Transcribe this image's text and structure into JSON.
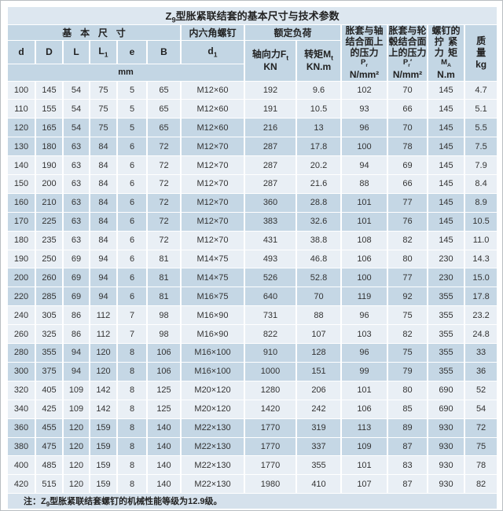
{
  "title": {
    "prefix": "Z",
    "sub": "9",
    "rest": "型胀紧联结套的基本尺寸与技术参数"
  },
  "colors": {
    "stripe_light": "#e9eff5",
    "stripe_dark": "#c5d7e5",
    "header_band": "#c3d6e4",
    "title_band": "#dde7f0",
    "note_band": "#d5e1ec",
    "grid_line": "#ffffff",
    "text": "#333333"
  },
  "header": {
    "basic_dims": "基本尺寸",
    "hex_screw": "内六角螺钉",
    "rated_load": "额定负荷",
    "mm": "mm",
    "col_d": "d",
    "col_D": "D",
    "col_L": "L",
    "col_L1_base": "L",
    "col_L1_sub": "1",
    "col_e": "e",
    "col_B": "B",
    "col_d1_base": "d",
    "col_d1_sub": "1",
    "axial_base": "轴向力F",
    "axial_sub": "t",
    "axial_unit": "KN",
    "torque_base": "转矩M",
    "torque_sub": "t",
    "torque_unit": "KN.m",
    "pr_shaft": {
      "l1": "胀套与轴",
      "l2": "结合面上",
      "l3": "的压力",
      "sym_base": "P",
      "sym_sub": "r",
      "unit": "N/mm²"
    },
    "pr_hub": {
      "l1": "胀套与轮",
      "l2": "毂结合面",
      "l3": "上的压力",
      "sym_base": "P",
      "sym_sub": "r",
      "sym_prime": "′",
      "unit": "N/mm²"
    },
    "ma": {
      "l1": "螺钉的",
      "l2": "拧紧",
      "l3": "力矩",
      "sym_base": "M",
      "sym_sub": "A",
      "unit": "N.m"
    },
    "mass": {
      "l1": "质量",
      "l2": "kg"
    }
  },
  "rows": [
    [
      "100",
      "145",
      "54",
      "75",
      "5",
      "65",
      "M12×60",
      "192",
      "9.6",
      "102",
      "70",
      "145",
      "4.7"
    ],
    [
      "110",
      "155",
      "54",
      "75",
      "5",
      "65",
      "M12×60",
      "191",
      "10.5",
      "93",
      "66",
      "145",
      "5.1"
    ],
    [
      "120",
      "165",
      "54",
      "75",
      "5",
      "65",
      "M12×60",
      "216",
      "13",
      "96",
      "70",
      "145",
      "5.5"
    ],
    [
      "130",
      "180",
      "63",
      "84",
      "6",
      "72",
      "M12×70",
      "287",
      "17.8",
      "100",
      "78",
      "145",
      "7.5"
    ],
    [
      "140",
      "190",
      "63",
      "84",
      "6",
      "72",
      "M12×70",
      "287",
      "20.2",
      "94",
      "69",
      "145",
      "7.9"
    ],
    [
      "150",
      "200",
      "63",
      "84",
      "6",
      "72",
      "M12×70",
      "287",
      "21.6",
      "88",
      "66",
      "145",
      "8.4"
    ],
    [
      "160",
      "210",
      "63",
      "84",
      "6",
      "72",
      "M12×70",
      "360",
      "28.8",
      "101",
      "77",
      "145",
      "8.9"
    ],
    [
      "170",
      "225",
      "63",
      "84",
      "6",
      "72",
      "M12×70",
      "383",
      "32.6",
      "101",
      "76",
      "145",
      "10.5"
    ],
    [
      "180",
      "235",
      "63",
      "84",
      "6",
      "72",
      "M12×70",
      "431",
      "38.8",
      "108",
      "82",
      "145",
      "11.0"
    ],
    [
      "190",
      "250",
      "69",
      "94",
      "6",
      "81",
      "M14×75",
      "493",
      "46.8",
      "106",
      "80",
      "230",
      "14.3"
    ],
    [
      "200",
      "260",
      "69",
      "94",
      "6",
      "81",
      "M14×75",
      "526",
      "52.8",
      "100",
      "77",
      "230",
      "15.0"
    ],
    [
      "220",
      "285",
      "69",
      "94",
      "6",
      "81",
      "M16×75",
      "640",
      "70",
      "119",
      "92",
      "355",
      "17.8"
    ],
    [
      "240",
      "305",
      "86",
      "112",
      "7",
      "98",
      "M16×90",
      "731",
      "88",
      "96",
      "75",
      "355",
      "23.2"
    ],
    [
      "260",
      "325",
      "86",
      "112",
      "7",
      "98",
      "M16×90",
      "822",
      "107",
      "103",
      "82",
      "355",
      "24.8"
    ],
    [
      "280",
      "355",
      "94",
      "120",
      "8",
      "106",
      "M16×100",
      "910",
      "128",
      "96",
      "75",
      "355",
      "33"
    ],
    [
      "300",
      "375",
      "94",
      "120",
      "8",
      "106",
      "M16×100",
      "1000",
      "151",
      "99",
      "79",
      "355",
      "36"
    ],
    [
      "320",
      "405",
      "109",
      "142",
      "8",
      "125",
      "M20×120",
      "1280",
      "206",
      "101",
      "80",
      "690",
      "52"
    ],
    [
      "340",
      "425",
      "109",
      "142",
      "8",
      "125",
      "M20×120",
      "1420",
      "242",
      "106",
      "85",
      "690",
      "54"
    ],
    [
      "360",
      "455",
      "120",
      "159",
      "8",
      "140",
      "M22×130",
      "1770",
      "319",
      "113",
      "89",
      "930",
      "72"
    ],
    [
      "380",
      "475",
      "120",
      "159",
      "8",
      "140",
      "M22×130",
      "1770",
      "337",
      "109",
      "87",
      "930",
      "75"
    ],
    [
      "400",
      "485",
      "120",
      "159",
      "8",
      "140",
      "M22×130",
      "1770",
      "355",
      "101",
      "83",
      "930",
      "78"
    ],
    [
      "420",
      "515",
      "120",
      "159",
      "8",
      "140",
      "M22×130",
      "1980",
      "410",
      "107",
      "87",
      "930",
      "82"
    ]
  ],
  "note": {
    "prefix": "注：Z",
    "sub": "9",
    "rest": "型胀紧联结套螺钉的机械性能等级为12.9级。"
  }
}
